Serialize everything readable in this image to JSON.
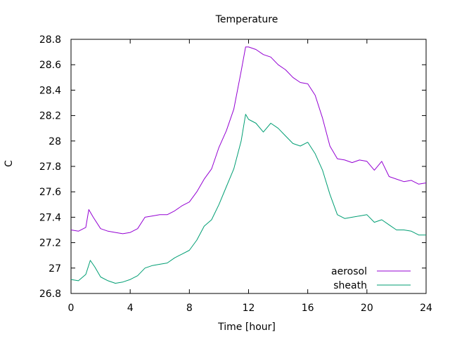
{
  "chart_data": {
    "type": "line",
    "title": "Temperature",
    "xlabel": "Time [hour]",
    "ylabel": "C",
    "xlim": [
      0,
      24
    ],
    "ylim": [
      26.8,
      28.8
    ],
    "xticks": [
      0,
      4,
      8,
      12,
      16,
      20,
      24
    ],
    "xtick_labels": [
      "0",
      "4",
      "8",
      "12",
      "16",
      "20",
      "24"
    ],
    "yticks": [
      26.8,
      27,
      27.2,
      27.4,
      27.6,
      27.8,
      28,
      28.2,
      28.4,
      28.6,
      28.8
    ],
    "ytick_labels": [
      "26.8",
      "27",
      "27.2",
      "27.4",
      "27.6",
      "27.8",
      "28",
      "28.2",
      "28.4",
      "28.6",
      "28.8"
    ],
    "grid": false,
    "legend_position": "bottom-right",
    "series": [
      {
        "name": "aerosol",
        "color": "#9400d3",
        "x": [
          0,
          0.5,
          1.0,
          1.2,
          1.5,
          2.0,
          2.5,
          3.0,
          3.5,
          4.0,
          4.5,
          5.0,
          5.5,
          6.0,
          6.5,
          7.0,
          7.5,
          8.0,
          8.5,
          9.0,
          9.5,
          10.0,
          10.5,
          11.0,
          11.5,
          11.8,
          12.0,
          12.5,
          13.0,
          13.5,
          14.0,
          14.5,
          15.0,
          15.5,
          16.0,
          16.5,
          17.0,
          17.5,
          18.0,
          18.5,
          19.0,
          19.5,
          20.0,
          20.5,
          21.0,
          21.5,
          22.0,
          22.5,
          23.0,
          23.5,
          24.0
        ],
        "y": [
          27.3,
          27.29,
          27.32,
          27.46,
          27.4,
          27.31,
          27.29,
          27.28,
          27.27,
          27.28,
          27.31,
          27.4,
          27.41,
          27.42,
          27.42,
          27.45,
          27.49,
          27.52,
          27.6,
          27.7,
          27.78,
          27.95,
          28.08,
          28.25,
          28.55,
          28.74,
          28.74,
          28.72,
          28.68,
          28.66,
          28.6,
          28.56,
          28.5,
          28.46,
          28.45,
          28.36,
          28.18,
          27.96,
          27.86,
          27.85,
          27.83,
          27.85,
          27.84,
          27.77,
          27.84,
          27.72,
          27.7,
          27.68,
          27.69,
          27.66,
          27.67
        ]
      },
      {
        "name": "sheath",
        "color": "#009e73",
        "x": [
          0,
          0.5,
          1.0,
          1.3,
          1.6,
          2.0,
          2.5,
          3.0,
          3.5,
          4.0,
          4.5,
          5.0,
          5.5,
          6.0,
          6.5,
          7.0,
          7.5,
          8.0,
          8.5,
          9.0,
          9.5,
          10.0,
          10.5,
          11.0,
          11.5,
          11.8,
          12.0,
          12.5,
          13.0,
          13.5,
          14.0,
          14.5,
          15.0,
          15.5,
          16.0,
          16.5,
          17.0,
          17.5,
          18.0,
          18.5,
          19.0,
          19.5,
          20.0,
          20.5,
          21.0,
          21.5,
          22.0,
          22.5,
          23.0,
          23.5,
          24.0
        ],
        "y": [
          26.91,
          26.9,
          26.95,
          27.06,
          27.01,
          26.93,
          26.9,
          26.88,
          26.89,
          26.91,
          26.94,
          27.0,
          27.02,
          27.03,
          27.04,
          27.08,
          27.11,
          27.14,
          27.22,
          27.33,
          27.38,
          27.5,
          27.64,
          27.78,
          28.0,
          28.21,
          28.17,
          28.14,
          28.07,
          28.14,
          28.1,
          28.04,
          27.98,
          27.96,
          27.99,
          27.9,
          27.77,
          27.58,
          27.42,
          27.39,
          27.4,
          27.41,
          27.42,
          27.36,
          27.38,
          27.34,
          27.3,
          27.3,
          27.29,
          27.26,
          27.26
        ]
      }
    ]
  }
}
